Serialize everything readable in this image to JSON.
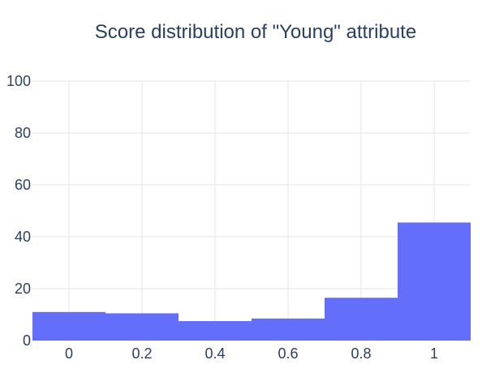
{
  "chart_data": {
    "type": "histogram",
    "title": "Score distribution of \"Young\" attribute",
    "xlabel": "",
    "ylabel": "",
    "bins": [
      {
        "x0": -0.1,
        "x1": 0.1,
        "count": 11
      },
      {
        "x0": 0.1,
        "x1": 0.3,
        "count": 10.5
      },
      {
        "x0": 0.3,
        "x1": 0.5,
        "count": 7.5
      },
      {
        "x0": 0.5,
        "x1": 0.7,
        "count": 8.5
      },
      {
        "x0": 0.7,
        "x1": 0.9,
        "count": 16.5
      },
      {
        "x0": 0.9,
        "x1": 1.1,
        "count": 45.5
      }
    ],
    "xlim": [
      -0.1,
      1.1
    ],
    "ylim": [
      0,
      100
    ],
    "x_ticks": [
      0,
      0.2,
      0.4,
      0.6,
      0.8,
      1
    ],
    "x_tick_labels": [
      "0",
      "0.2",
      "0.4",
      "0.6",
      "0.8",
      "1"
    ],
    "y_ticks": [
      0,
      20,
      40,
      60,
      80,
      100
    ],
    "y_tick_labels": [
      "0",
      "20",
      "40",
      "60",
      "80",
      "100"
    ],
    "grid": true,
    "bar_color": "#636efa",
    "grid_color": "#e5e5e5"
  }
}
